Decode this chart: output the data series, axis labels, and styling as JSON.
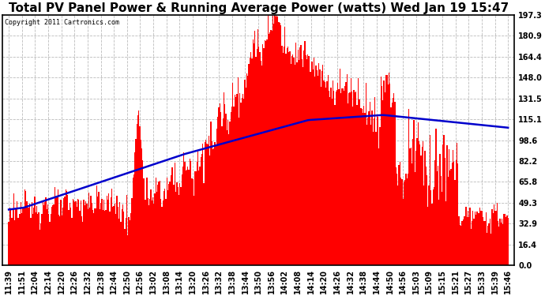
{
  "title": "Total PV Panel Power & Running Average Power (watts) Wed Jan 19 15:47",
  "copyright": "Copyright 2011 Cartronics.com",
  "background_color": "#ffffff",
  "plot_bg_color": "#ffffff",
  "bar_color": "#ff0000",
  "line_color": "#0000cc",
  "yticks": [
    0.0,
    16.4,
    32.9,
    49.3,
    65.8,
    82.2,
    98.6,
    115.1,
    131.5,
    148.0,
    164.4,
    180.9,
    197.3
  ],
  "ymax": 197.3,
  "ymin": 0.0,
  "grid_color": "#bbbbbb",
  "title_fontsize": 11,
  "tick_fontsize": 7,
  "time_labels": [
    "11:39",
    "11:51",
    "12:04",
    "12:14",
    "12:20",
    "12:26",
    "12:32",
    "12:38",
    "12:44",
    "12:50",
    "12:56",
    "13:02",
    "13:08",
    "13:14",
    "13:20",
    "13:26",
    "13:32",
    "13:38",
    "13:44",
    "13:50",
    "13:56",
    "14:02",
    "14:08",
    "14:14",
    "14:20",
    "14:26",
    "14:32",
    "14:38",
    "14:44",
    "14:50",
    "14:56",
    "15:03",
    "15:09",
    "15:15",
    "15:21",
    "15:27",
    "15:33",
    "15:39",
    "15:46"
  ]
}
